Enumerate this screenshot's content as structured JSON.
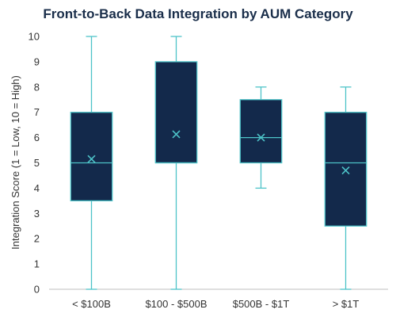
{
  "chart_data": {
    "type": "box",
    "title": "Front-to-Back Data Integration by AUM Category",
    "xlabel": "",
    "ylabel": "Integration Score (1 = Low, 10 = High)",
    "ylim": [
      0,
      10
    ],
    "yticks": [
      0,
      1,
      2,
      3,
      4,
      5,
      6,
      7,
      8,
      9,
      10
    ],
    "grid": false,
    "colors": {
      "box_fill": "#13294b",
      "whisker": "#4dc3c8",
      "mean_marker": "#4dc3c8",
      "axis": "#bfbfbf"
    },
    "categories": [
      "< $100B",
      "$100 - $500B",
      "$500B - $1T",
      "> $1T"
    ],
    "boxes": [
      {
        "min": 0,
        "q1": 3.5,
        "median": 5,
        "q3": 7,
        "max": 10,
        "mean": 5.15
      },
      {
        "min": 0,
        "q1": 5,
        "median": 5,
        "q3": 9,
        "max": 10,
        "mean": 6.13
      },
      {
        "min": 4,
        "q1": 5,
        "median": 6,
        "q3": 7.5,
        "max": 8,
        "mean": 6
      },
      {
        "min": 0,
        "q1": 2.5,
        "median": 5,
        "q3": 7,
        "max": 8,
        "mean": 4.7
      }
    ]
  }
}
